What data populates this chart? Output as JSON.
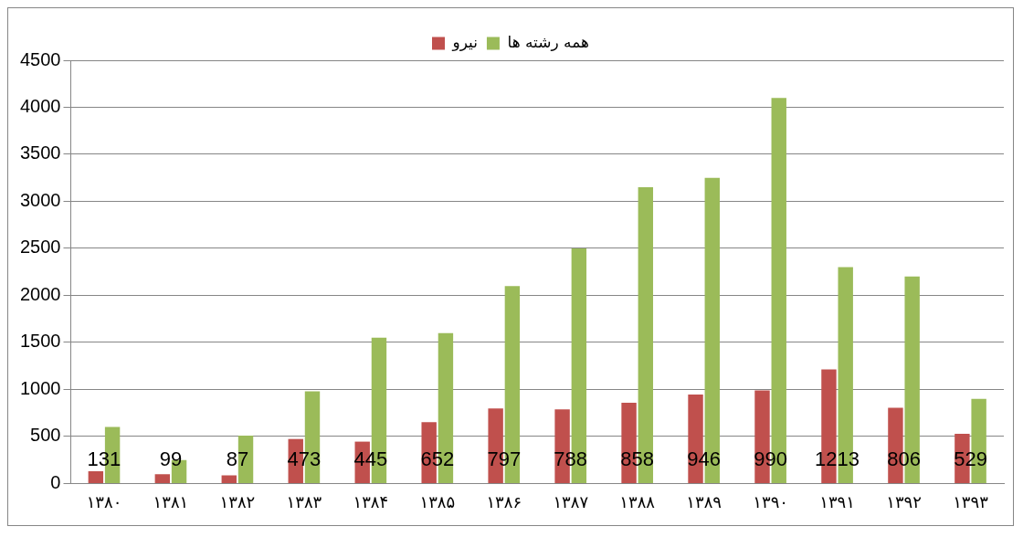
{
  "chart_data": {
    "type": "bar",
    "categories": [
      "۱۳۸۰",
      "۱۳۸۱",
      "۱۳۸۲",
      "۱۳۸۳",
      "۱۳۸۴",
      "۱۳۸۵",
      "۱۳۸۶",
      "۱۳۸۷",
      "۱۳۸۸",
      "۱۳۸۹",
      "۱۳۹۰",
      "۱۳۹۱",
      "۱۳۹۲",
      "۱۳۹۳"
    ],
    "series": [
      {
        "name": "نیرو",
        "color": "#c0504d",
        "values": [
          131,
          99,
          87,
          473,
          445,
          652,
          797,
          788,
          858,
          946,
          990,
          1213,
          806,
          529
        ],
        "value_labels": [
          "131",
          "99",
          "87",
          "473",
          "445",
          "652",
          "797",
          "788",
          "858",
          "946",
          "990",
          "1213",
          "806",
          "529"
        ]
      },
      {
        "name": "همه رشته ها",
        "color": "#9bbb59",
        "values": [
          600,
          250,
          510,
          980,
          1550,
          1600,
          2100,
          2500,
          3150,
          3250,
          4100,
          2300,
          2200,
          900
        ]
      }
    ],
    "ylim": [
      0,
      4500
    ],
    "yticks": [
      0,
      500,
      1000,
      1500,
      2000,
      2500,
      3000,
      3500,
      4000,
      4500
    ],
    "grid": "y",
    "legend": "top"
  }
}
